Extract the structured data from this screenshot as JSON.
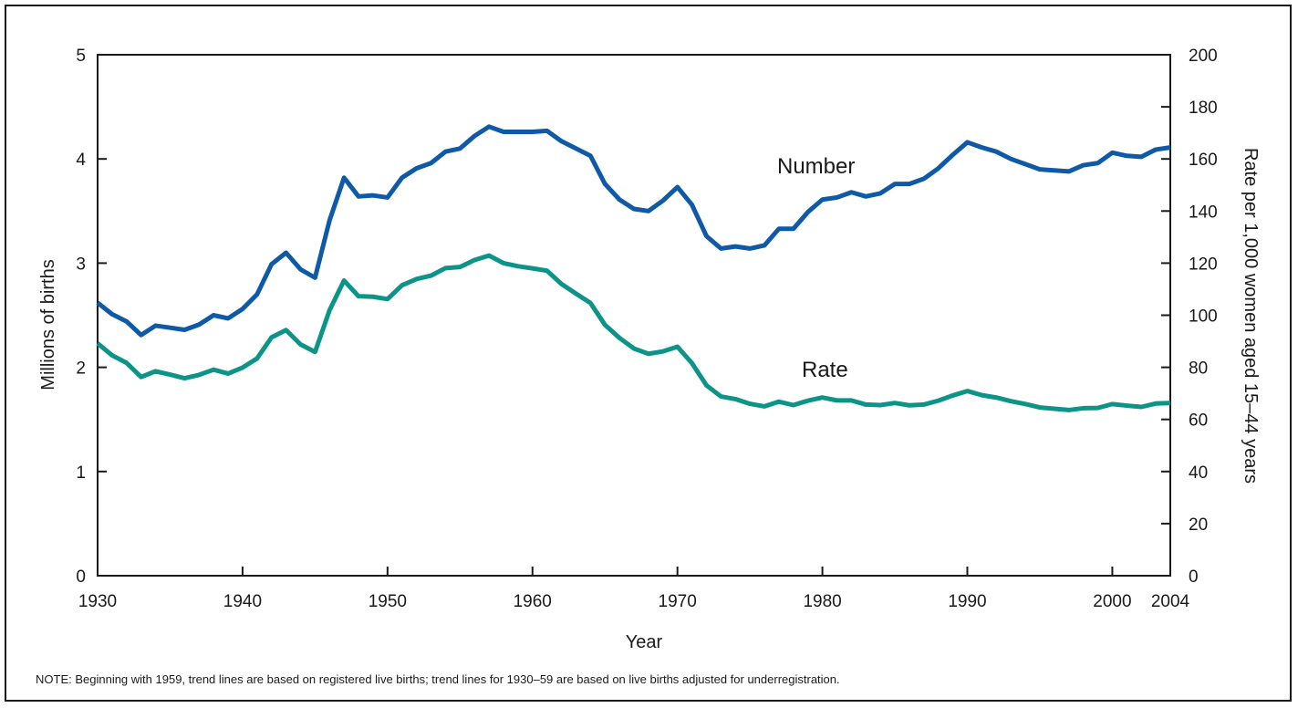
{
  "chart_data": {
    "type": "line",
    "xlabel": "Year",
    "ylabel_left": "Millions of births",
    "ylabel_right": "Rate per 1,000 women aged 15–44 years",
    "xlim": [
      1930,
      2004
    ],
    "ylim_left": [
      0,
      5
    ],
    "ylim_right": [
      0,
      200
    ],
    "x_ticks": [
      "1930",
      "1940",
      "1950",
      "1960",
      "1970",
      "1980",
      "1990",
      "2000",
      "2004"
    ],
    "y_ticks_left": [
      "0",
      "1",
      "2",
      "3",
      "4",
      "5"
    ],
    "y_ticks_right": [
      "0",
      "20",
      "40",
      "60",
      "80",
      "100",
      "120",
      "140",
      "160",
      "180",
      "200"
    ],
    "grid": false,
    "legend": "none",
    "x": [
      1930,
      1931,
      1932,
      1933,
      1934,
      1935,
      1936,
      1937,
      1938,
      1939,
      1940,
      1941,
      1942,
      1943,
      1944,
      1945,
      1946,
      1947,
      1948,
      1949,
      1950,
      1951,
      1952,
      1953,
      1954,
      1955,
      1956,
      1957,
      1958,
      1959,
      1960,
      1961,
      1962,
      1963,
      1964,
      1965,
      1966,
      1967,
      1968,
      1969,
      1970,
      1971,
      1972,
      1973,
      1974,
      1975,
      1976,
      1977,
      1978,
      1979,
      1980,
      1981,
      1982,
      1983,
      1984,
      1985,
      1986,
      1987,
      1988,
      1989,
      1990,
      1991,
      1992,
      1993,
      1994,
      1995,
      1996,
      1997,
      1998,
      1999,
      2000,
      2001,
      2002,
      2003,
      2004
    ],
    "series": [
      {
        "name": "Number",
        "axis": "left",
        "color": "#0e5aa7",
        "values": [
          2.62,
          2.51,
          2.44,
          2.31,
          2.4,
          2.38,
          2.36,
          2.41,
          2.5,
          2.47,
          2.56,
          2.7,
          2.99,
          3.1,
          2.94,
          2.86,
          3.41,
          3.82,
          3.64,
          3.65,
          3.63,
          3.82,
          3.91,
          3.96,
          4.07,
          4.1,
          4.22,
          4.31,
          4.26,
          4.26,
          4.26,
          4.27,
          4.17,
          4.1,
          4.03,
          3.76,
          3.61,
          3.52,
          3.5,
          3.6,
          3.73,
          3.56,
          3.26,
          3.14,
          3.16,
          3.14,
          3.17,
          3.33,
          3.33,
          3.49,
          3.61,
          3.63,
          3.68,
          3.64,
          3.67,
          3.76,
          3.76,
          3.81,
          3.91,
          4.04,
          4.16,
          4.11,
          4.07,
          4.0,
          3.95,
          3.9,
          3.89,
          3.88,
          3.94,
          3.96,
          4.06,
          4.03,
          4.02,
          4.09,
          4.11
        ]
      },
      {
        "name": "Rate",
        "axis": "right",
        "color": "#0d9488",
        "values": [
          89.2,
          84.6,
          81.7,
          76.3,
          78.5,
          77.2,
          75.8,
          77.1,
          79.1,
          77.6,
          79.9,
          83.4,
          91.5,
          94.3,
          88.8,
          85.9,
          101.9,
          113.3,
          107.3,
          107.1,
          106.2,
          111.5,
          113.9,
          115.2,
          118.1,
          118.5,
          121.2,
          122.9,
          120.0,
          118.8,
          118.0,
          117.1,
          112.0,
          108.3,
          104.7,
          96.3,
          91.3,
          87.2,
          85.2,
          86.1,
          87.9,
          81.6,
          73.1,
          68.8,
          67.8,
          66.0,
          65.0,
          66.8,
          65.5,
          67.2,
          68.4,
          67.3,
          67.3,
          65.7,
          65.5,
          66.3,
          65.4,
          65.7,
          67.2,
          69.2,
          70.9,
          69.3,
          68.4,
          67.0,
          65.9,
          64.6,
          64.1,
          63.6,
          64.3,
          64.4,
          65.9,
          65.3,
          64.8,
          66.1,
          66.3
        ]
      }
    ]
  },
  "note": "NOTE: Beginning with 1959, trend lines are based on registered live births; trend lines for 1930–59 are based on live births adjusted for underregistration."
}
